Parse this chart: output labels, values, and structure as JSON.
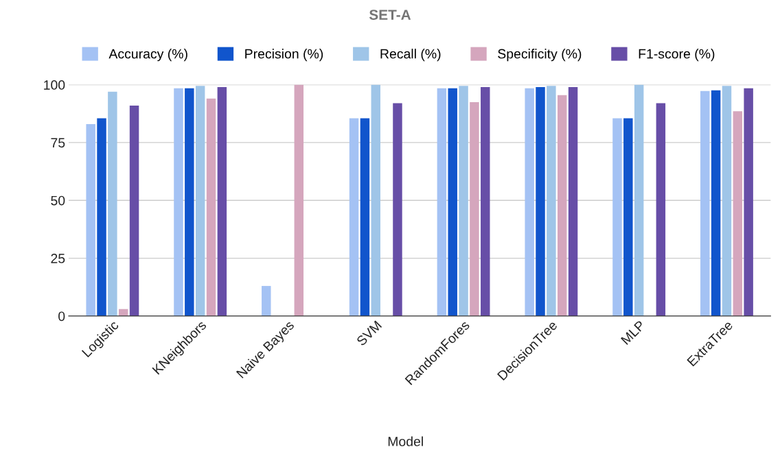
{
  "chart_data": {
    "type": "bar",
    "title": "SET-A",
    "xlabel": "Model",
    "categories": [
      "Logistic",
      "KNeighbors",
      "Naive Bayes",
      "SVM",
      "RandomFores",
      "DecisionTree",
      "MLP",
      "ExtraTree"
    ],
    "series": [
      {
        "name": "Accuracy (%)",
        "color": "#a4c2f4",
        "values": [
          83,
          98.5,
          13,
          85.5,
          98.5,
          98.5,
          85.5,
          97.3
        ]
      },
      {
        "name": "Precision (%)",
        "color": "#1155cc",
        "values": [
          85.5,
          98.5,
          0,
          85.5,
          98.5,
          99,
          85.5,
          97.6
        ]
      },
      {
        "name": "Recall (%)",
        "color": "#9fc5e8",
        "values": [
          97,
          99.5,
          0,
          100,
          99.5,
          99.5,
          100,
          99.5
        ]
      },
      {
        "name": "Specificity (%)",
        "color": "#d5a6bd",
        "values": [
          3,
          94,
          100,
          0,
          92.5,
          95.5,
          0,
          88.5
        ]
      },
      {
        "name": "F1-score (%)",
        "color": "#674ea7",
        "values": [
          91,
          99,
          0,
          92,
          99,
          99,
          92,
          98.5
        ]
      }
    ],
    "ylim": [
      0,
      100
    ],
    "yticks": [
      0,
      25,
      50,
      75,
      100
    ],
    "grid": "y",
    "legend": "top"
  }
}
